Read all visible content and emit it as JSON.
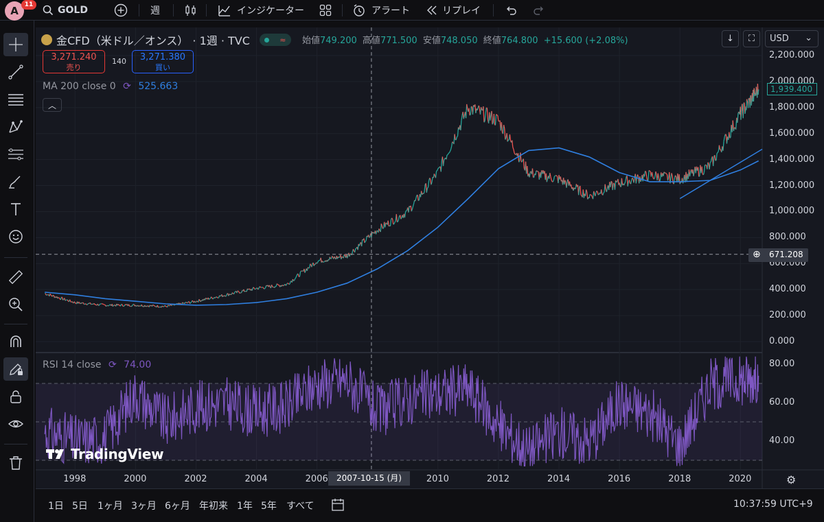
{
  "topbar": {
    "avatar_letter": "A",
    "badge_count": "11",
    "symbol": "GOLD",
    "interval": "週",
    "indicators": "インジケーター",
    "alert": "アラート",
    "replay": "リプレイ"
  },
  "legend": {
    "title": "金CFD（米ドル／オンス）",
    "interval": "· 1週 · TVC",
    "open_label": "始値",
    "open": "749.200",
    "high_label": "高値",
    "high": "771.500",
    "low_label": "安値",
    "low": "748.050",
    "close_label": "終値",
    "close": "764.800",
    "change": "+15.600 (+2.08%)",
    "sell_price": "3,271.240",
    "sell_label": "売り",
    "buy_price": "3,271.380",
    "buy_label": "買い",
    "spread": "140",
    "ma_label": "MA 200 close 0",
    "ma_value": "525.663",
    "rsi_label": "RSI 14 close",
    "rsi_value": "74.00"
  },
  "price_axis": {
    "currency": "USD",
    "labels": [
      "2,200.000",
      "2,000.000",
      "1,800.000",
      "1,600.000",
      "1,400.000",
      "1,200.000",
      "1,000.000",
      "800.000",
      "600.000",
      "400.000",
      "200.000",
      "0.000"
    ],
    "last_price": "1,939.400",
    "crosshair_price": "671.208"
  },
  "rsi_axis": {
    "labels": [
      "80.00",
      "60.00",
      "40.00"
    ]
  },
  "time_axis": {
    "labels": [
      "1998",
      "2000",
      "2002",
      "2004",
      "2006",
      "2010",
      "2012",
      "2014",
      "2016",
      "2018",
      "2020"
    ],
    "crosshair_date": "2007-10-15 (月)"
  },
  "bottombar": {
    "ranges": [
      "1日",
      "5日",
      "1ヶ月",
      "3ヶ月",
      "6ヶ月",
      "年初来",
      "1年",
      "5年",
      "すべて"
    ],
    "clock": "10:37:59 UTC+9"
  },
  "watermark": "TradingView",
  "colors": {
    "up": "#26a69a",
    "down": "#ef5350",
    "ma": "#2f7fe0",
    "rsi": "#7e57c2",
    "background": "#161820"
  },
  "chart_data": {
    "type": "line",
    "title": "金CFD（米ドル／オンス） · 1週 · TVC",
    "xlabel": "",
    "ylabel": "USD",
    "ylim": [
      0,
      2200
    ],
    "x": [
      1997,
      1998,
      1999,
      2000,
      2001,
      2002,
      2003,
      2004,
      2005,
      2006,
      2007,
      2008,
      2009,
      2010,
      2011,
      2012,
      2013,
      2014,
      2015,
      2016,
      2017,
      2018,
      2019,
      2020,
      2020.6
    ],
    "series": [
      {
        "name": "Price",
        "values": [
          370,
          300,
          280,
          280,
          270,
          310,
          360,
          410,
          440,
          620,
          660,
          860,
          1000,
          1300,
          1800,
          1700,
          1300,
          1250,
          1120,
          1220,
          1280,
          1250,
          1350,
          1750,
          1939
        ]
      },
      {
        "name": "MA 200",
        "values": [
          380,
          360,
          330,
          310,
          290,
          280,
          285,
          300,
          330,
          380,
          450,
          560,
          700,
          880,
          1100,
          1330,
          1470,
          1490,
          1420,
          1300,
          1230,
          1230,
          1240,
          1320,
          1390
        ]
      }
    ],
    "rsi": {
      "name": "RSI 14 close",
      "ylim": [
        25,
        85
      ],
      "bands": [
        30,
        50,
        70
      ],
      "x": [
        1997,
        1998,
        1999,
        2000,
        2001,
        2002,
        2003,
        2004,
        2005,
        2006,
        2007,
        2008,
        2009,
        2010,
        2011,
        2012,
        2013,
        2014,
        2015,
        2016,
        2017,
        2018,
        2019,
        2020,
        2020.6
      ],
      "values": [
        45,
        40,
        42,
        65,
        50,
        58,
        60,
        55,
        58,
        70,
        72,
        55,
        62,
        65,
        68,
        48,
        35,
        45,
        40,
        60,
        55,
        38,
        70,
        72,
        74
      ]
    }
  }
}
